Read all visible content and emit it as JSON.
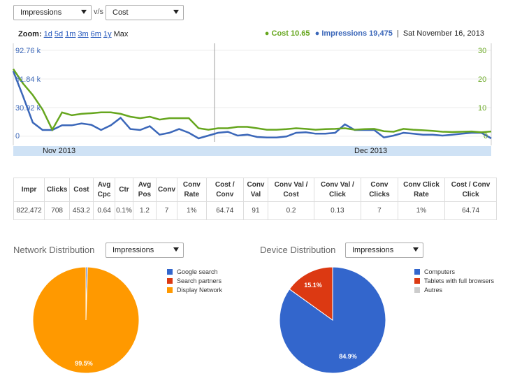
{
  "controls": {
    "metric1": "Impressions",
    "vs_label": "v/s",
    "metric2": "Cost"
  },
  "zoom": {
    "label": "Zoom:",
    "options": [
      "1d",
      "5d",
      "1m",
      "3m",
      "6m",
      "1y"
    ],
    "max": "Max"
  },
  "legend": {
    "cost": "Cost 10.65",
    "impressions": "Impressions 19,475",
    "separator": "|",
    "date": "Sat November 16, 2013"
  },
  "colors": {
    "cost": "#66a61e",
    "impressions": "#3b67b9",
    "navigator": "#cfe2f5",
    "orange": "#ff9900",
    "red": "#dc3912",
    "blue": "#3366cc",
    "grey": "#cccccc"
  },
  "chart_data": {
    "type": "line",
    "left_axis_ticks": [
      "92.76 k",
      "61.84 k",
      "30.92 k",
      "0"
    ],
    "right_axis_ticks": [
      "30",
      "20",
      "10",
      "0"
    ],
    "ylim_left": [
      0,
      92760
    ],
    "ylim_right": [
      0,
      30
    ],
    "navigator_labels": [
      "Nov 2013",
      "Dec 2013"
    ],
    "series": [
      {
        "name": "Impressions",
        "axis": "left",
        "values": [
          72000,
          45000,
          17000,
          9000,
          9000,
          14000,
          14000,
          16000,
          14500,
          9000,
          14000,
          22000,
          10000,
          9000,
          13000,
          4000,
          6000,
          10000,
          6000,
          0,
          3000,
          6000,
          7000,
          3000,
          4000,
          1500,
          1000,
          1000,
          2000,
          6000,
          6500,
          5000,
          5000,
          6000,
          15000,
          9000,
          9000,
          9000,
          1000,
          3000,
          6000,
          5000,
          4000,
          4000,
          3000,
          4000,
          5000,
          6000,
          6000,
          0
        ]
      },
      {
        "name": "Cost",
        "axis": "right",
        "values": [
          24,
          19,
          15,
          10,
          3,
          9,
          8,
          8.5,
          8.7,
          9,
          9,
          8.5,
          7.5,
          7,
          7.5,
          6.5,
          7,
          7,
          7,
          3.5,
          3,
          3.5,
          3.5,
          4,
          4,
          3.5,
          3,
          3,
          3.2,
          3.5,
          3.3,
          3,
          3.2,
          3.3,
          3.5,
          3,
          3.2,
          3.3,
          2.5,
          2.3,
          3.3,
          3,
          2.8,
          2.6,
          2.3,
          2.2,
          2.3,
          2.4,
          2.1,
          2.4
        ]
      }
    ]
  },
  "table": {
    "headers": [
      "Impr",
      "Clicks",
      "Cost",
      "Avg Cpc",
      "Ctr",
      "Avg Pos",
      "Conv",
      "Conv Rate",
      "Cost / Conv",
      "Conv Val",
      "Conv Val / Cost",
      "Conv Val / Click",
      "Conv Clicks",
      "Conv Click Rate",
      "Cost / Conv Click"
    ],
    "rows": [
      [
        "822,472",
        "708",
        "453.2",
        "0.64",
        "0.1%",
        "1.2",
        "7",
        "1%",
        "64.74",
        "91",
        "0.2",
        "0.13",
        "7",
        "1%",
        "64.74"
      ]
    ]
  },
  "network": {
    "title": "Network Distribution",
    "select": "Impressions",
    "legend": [
      "Google search",
      "Search partners",
      "Display Network"
    ],
    "slices": [
      {
        "label": "Google search",
        "value": 0.5,
        "color": "#3366cc"
      },
      {
        "label": "Search partners",
        "value": 0,
        "color": "#dc3912"
      },
      {
        "label": "Display Network",
        "value": 99.5,
        "color": "#ff9900"
      }
    ],
    "pct_label": "99.5%"
  },
  "device": {
    "title": "Device Distribution",
    "select": "Impressions",
    "legend": [
      "Computers",
      "Tablets with full browsers",
      "Autres"
    ],
    "slices": [
      {
        "label": "Computers",
        "value": 84.9,
        "color": "#3366cc"
      },
      {
        "label": "Tablets with full browsers",
        "value": 15.1,
        "color": "#dc3912"
      },
      {
        "label": "Autres",
        "value": 0,
        "color": "#cccccc"
      }
    ],
    "pct_labels": [
      "84.9%",
      "15.1%"
    ]
  }
}
